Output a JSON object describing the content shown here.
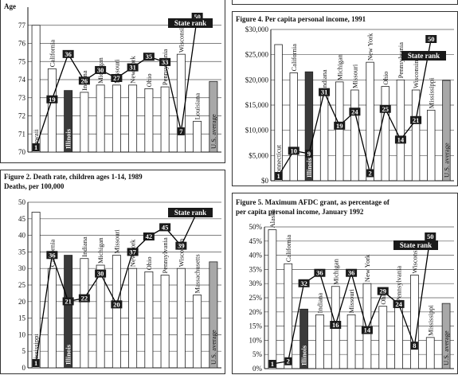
{
  "chart_data": [
    {
      "id": "fig1",
      "type": "bar",
      "title": "",
      "ylabel": "Age",
      "ylim": [
        70,
        78
      ],
      "yticks": [
        70,
        71,
        72,
        73,
        74,
        75,
        76,
        77
      ],
      "categories": [
        "Hawaii",
        "California",
        "Illinois",
        "Indiana",
        "Michigan",
        "Missouri",
        "New York",
        "Ohio",
        "Pennsylvania",
        "Wisconsin",
        "Louisiana",
        "U.S. average"
      ],
      "values": [
        77.0,
        74.6,
        73.4,
        73.3,
        73.7,
        73.7,
        73.7,
        73.5,
        73.6,
        75.4,
        71.7,
        73.9
      ],
      "highlight": [
        "Illinois"
      ],
      "average": [
        "U.S. average"
      ],
      "rank_series": {
        "name": "State rank",
        "values": [
          1,
          19,
          36,
          26,
          30,
          27,
          31,
          35,
          33,
          7,
          50,
          null
        ]
      }
    },
    {
      "id": "fig2",
      "type": "bar",
      "title": "Figure 2. Death rate, children ages 1-14, 1989",
      "ylabel": "Deaths, per 100,000",
      "ylim": [
        0,
        50
      ],
      "yticks": [
        0,
        5,
        10,
        15,
        20,
        25,
        30,
        35,
        40,
        45,
        50
      ],
      "categories": [
        "Mississippi",
        "California",
        "Illinois",
        "Indiana",
        "Michigan",
        "Missouri",
        "New York",
        "Ohio",
        "Pennsylvania",
        "Wisconsin",
        "Massachusetts",
        "U.S. average"
      ],
      "values": [
        47,
        30,
        34,
        33,
        31,
        34,
        30,
        29,
        28,
        30,
        22,
        32
      ],
      "highlight": [
        "Illinois"
      ],
      "average": [
        "U.S. average"
      ],
      "rank_series": {
        "name": "State rank",
        "values": [
          1,
          36,
          21,
          22,
          30,
          20,
          37,
          42,
          45,
          39,
          50,
          null
        ]
      }
    },
    {
      "id": "fig4",
      "type": "bar",
      "title": "Figure 4. Per capita personal income, 1991",
      "ylabel": "",
      "ylim": [
        0,
        30000
      ],
      "yticks": [
        0,
        5000,
        10000,
        15000,
        20000,
        25000,
        30000
      ],
      "ytick_labels": [
        "$0",
        "$5,000",
        "$10,000",
        "$15,000",
        "$20,000",
        "$25,000",
        "$30,000"
      ],
      "categories": [
        "Connecticut",
        "California",
        "Illinois",
        "Indiana",
        "Michigan",
        "Missouri",
        "New York",
        "Ohio",
        "Pennsylvania",
        "Wisconsin",
        "Mississippi",
        "U.S. average"
      ],
      "values": [
        27000,
        21400,
        21600,
        17700,
        19600,
        18000,
        23500,
        18700,
        20000,
        18000,
        14000,
        19900
      ],
      "highlight": [
        "Illinois"
      ],
      "average": [
        "U.S. average"
      ],
      "rank_series": {
        "name": "State rank",
        "values": [
          1,
          10,
          9,
          31,
          19,
          24,
          2,
          25,
          14,
          21,
          50,
          null
        ]
      }
    },
    {
      "id": "fig5",
      "type": "bar",
      "title": "Figure 5. Maximum AFDC grant, as percentage of per capita personal income, January 1992",
      "title_lines": [
        "Figure 5. Maximum AFDC grant, as percentage of",
        "per capita personal income, January 1992"
      ],
      "ylabel": "",
      "ylim": [
        0,
        50
      ],
      "yticks": [
        0,
        5,
        10,
        15,
        20,
        25,
        30,
        35,
        40,
        45,
        50
      ],
      "ytick_labels": [
        "0%",
        "5%",
        "10%",
        "15%",
        "20%",
        "25%",
        "30%",
        "35%",
        "40%",
        "45%",
        "50%"
      ],
      "categories": [
        "Alaska",
        "California",
        "Illinois",
        "Indiana",
        "Michigan",
        "Missouri",
        "New York",
        "Ohio",
        "Pennsylvania",
        "Wisconsin",
        "Mississippi",
        "U.S. average"
      ],
      "values": [
        49,
        37,
        21,
        19,
        29,
        19,
        30,
        22,
        23,
        33,
        11,
        23
      ],
      "highlight": [
        "Illinois"
      ],
      "average": [
        "U.S. average"
      ],
      "rank_series": {
        "name": "State rank",
        "values": [
          1,
          2,
          32,
          36,
          16,
          36,
          14,
          29,
          24,
          8,
          50,
          null
        ]
      }
    }
  ],
  "legend": {
    "rank_label": "State rank"
  }
}
